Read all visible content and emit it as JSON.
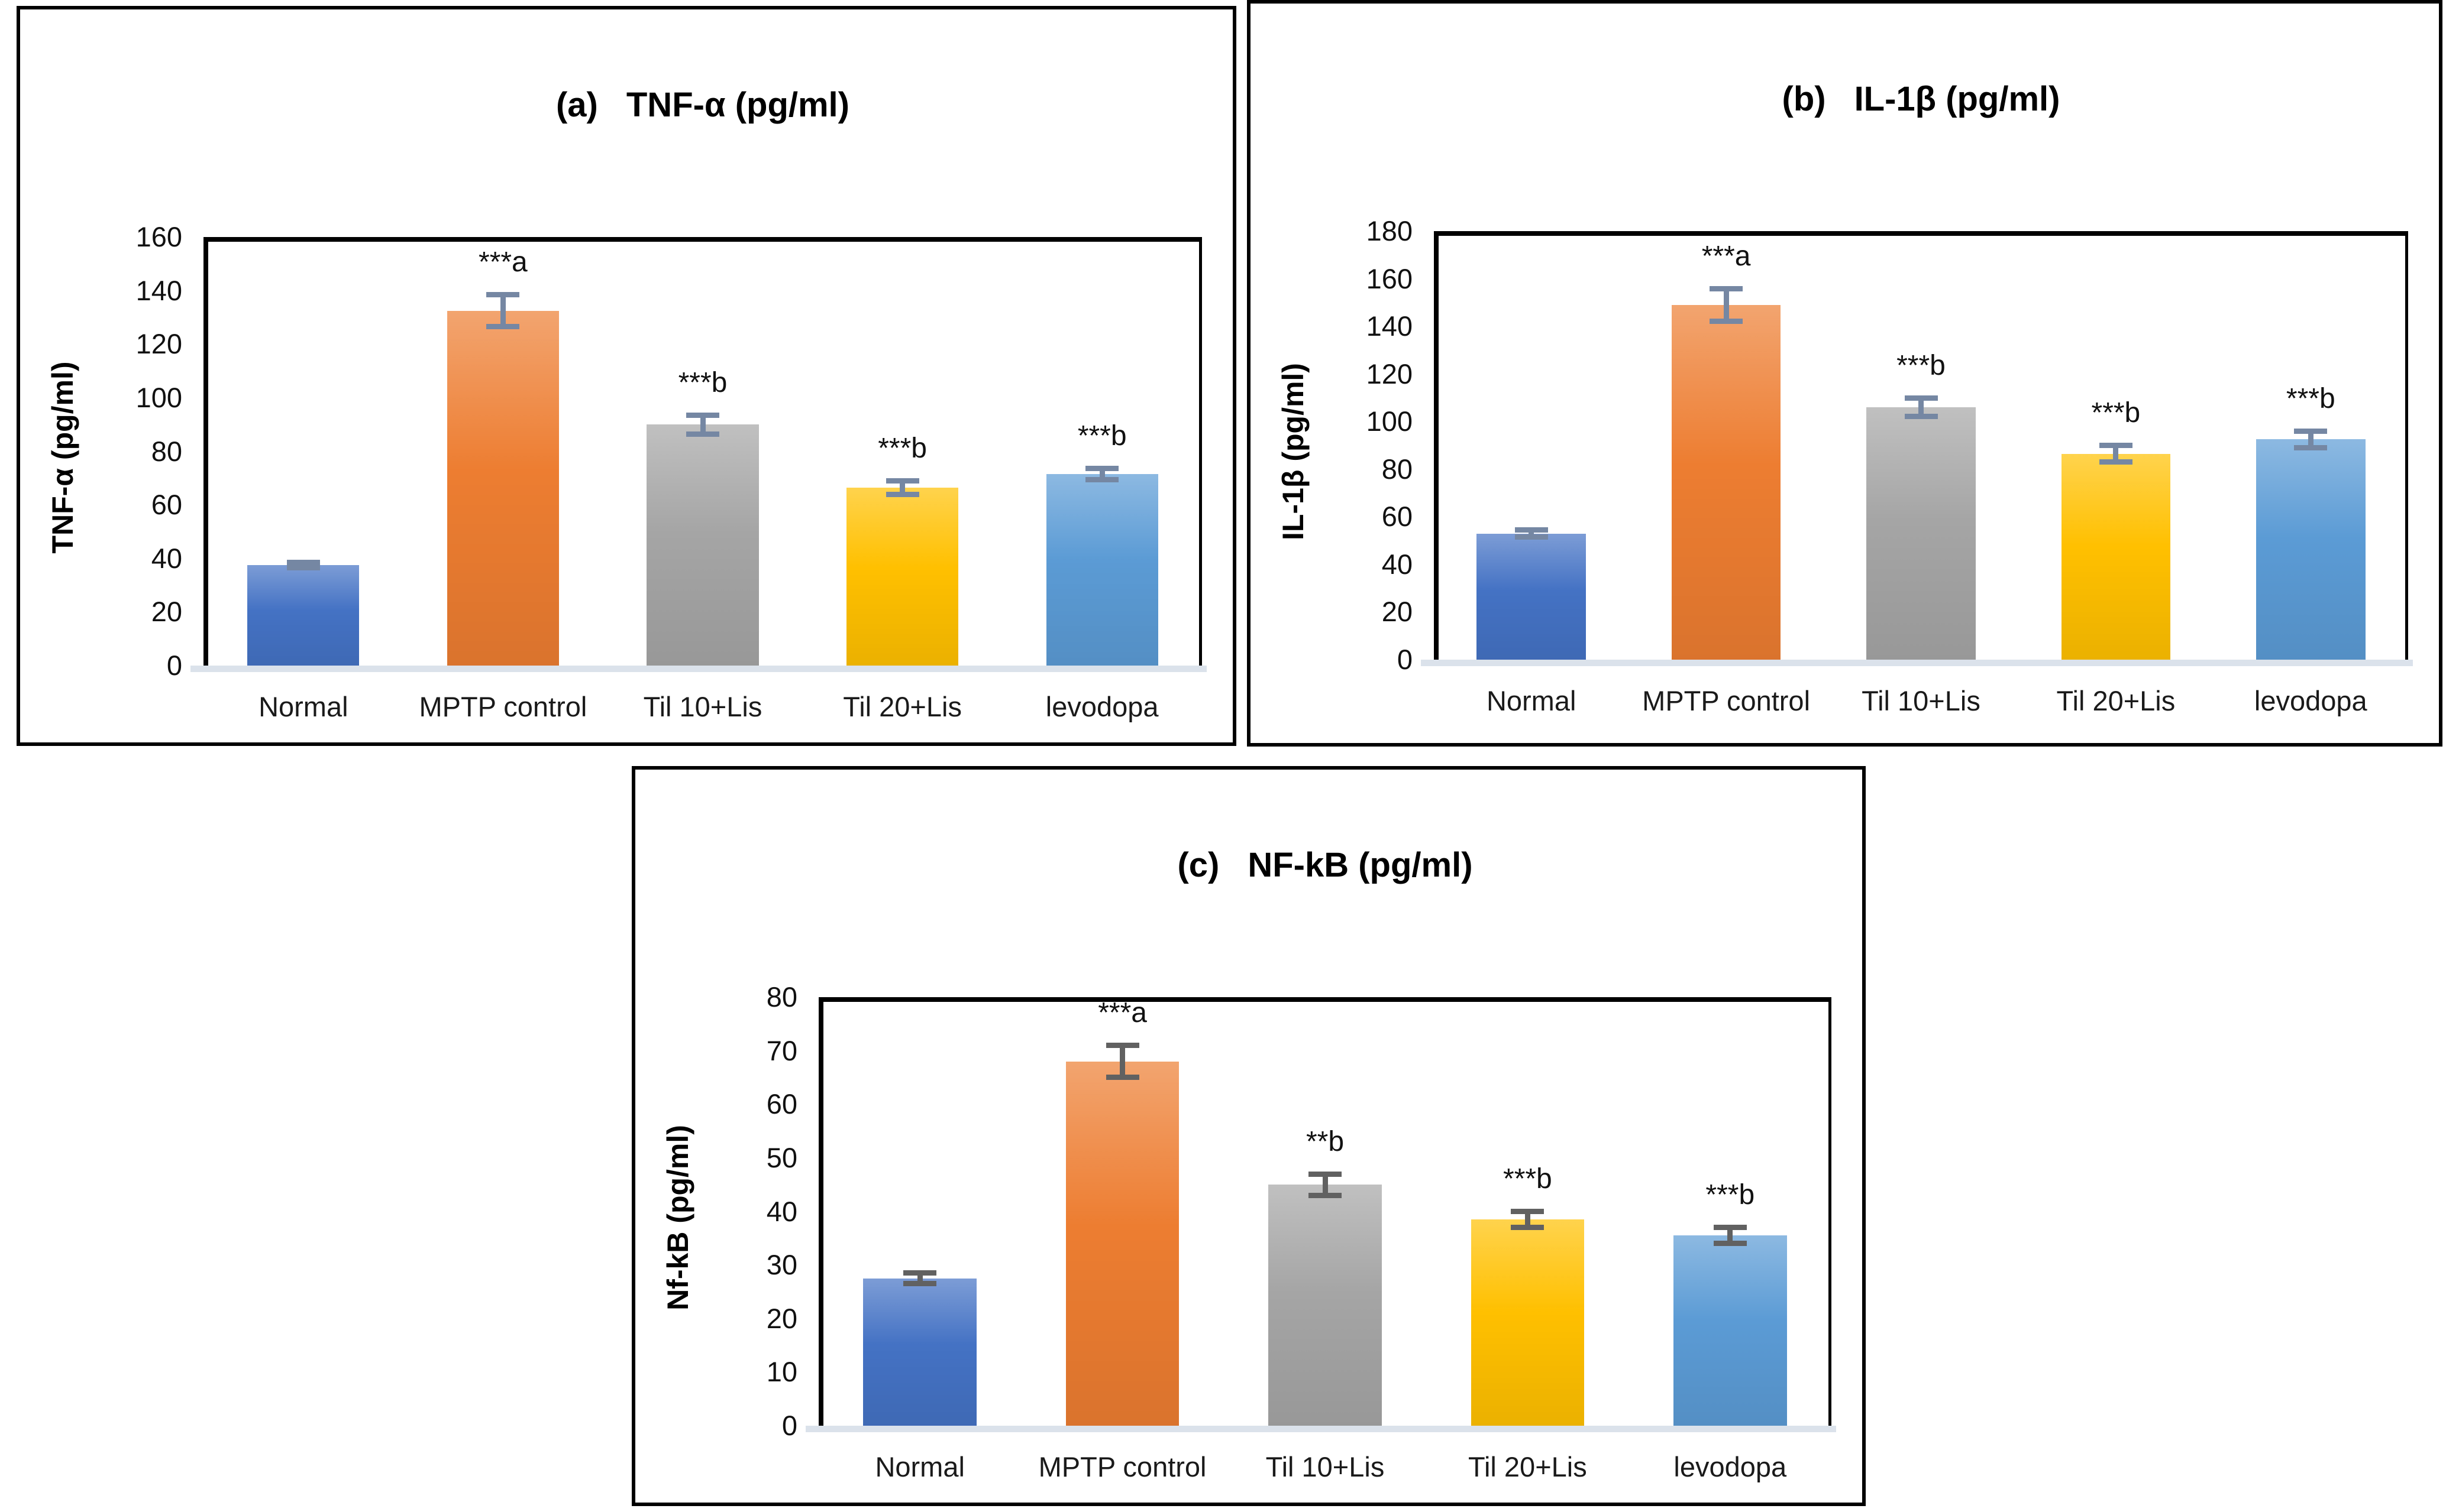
{
  "figure": {
    "description_labels": {
      "panel_a_title_prefix": "(a)",
      "panel_b_title_prefix": "(b)",
      "panel_c_title_prefix": "(c)"
    }
  },
  "chart_data": [
    {
      "type": "bar",
      "title_prefix": "(a)",
      "title": "TNF-α (pg/ml)",
      "ylabel": "TNF-α (pg/ml)",
      "xlabel": "",
      "ylim": [
        0,
        160
      ],
      "ystep": 20,
      "grid": false,
      "legend": "none",
      "categories": [
        "Normal",
        "MPTP control",
        "Til 10+Lis",
        "Til 20+Lis",
        "levodopa"
      ],
      "values": [
        37.5,
        132.5,
        90,
        66.5,
        71.5
      ],
      "error_bars": [
        2,
        7,
        4.5,
        3.5,
        3
      ],
      "annotations": [
        "",
        "***a",
        "***b",
        "***b",
        "***b"
      ],
      "bar_colors": [
        "#4472C4",
        "#ED7D31",
        "#A5A5A5",
        "#FFC000",
        "#5B9BD5"
      ],
      "error_bar_color": "#7587A3"
    },
    {
      "type": "bar",
      "title_prefix": "(b)",
      "title": "IL-1β (pg/ml)",
      "ylabel": "IL-1β (pg/ml)",
      "xlabel": "",
      "ylim": [
        0,
        180
      ],
      "ystep": 20,
      "grid": false,
      "legend": "none",
      "categories": [
        "Normal",
        "MPTP control",
        "Til 10+Lis",
        "Til 20+Lis",
        "levodopa"
      ],
      "values": [
        53,
        149,
        106,
        86.5,
        92.5
      ],
      "error_bars": [
        2.5,
        8,
        5,
        4.5,
        4.5
      ],
      "annotations": [
        "",
        "***a",
        "***b",
        "***b",
        "***b"
      ],
      "bar_colors": [
        "#4472C4",
        "#ED7D31",
        "#A5A5A5",
        "#FFC000",
        "#5B9BD5"
      ],
      "error_bar_color": "#7587A3"
    },
    {
      "type": "bar",
      "title_prefix": "(c)",
      "title": "NF-kB (pg/ml)",
      "ylabel": "Nf-kB (pg/ml)",
      "xlabel": "",
      "ylim": [
        0,
        80
      ],
      "ystep": 10,
      "grid": false,
      "legend": "none",
      "categories": [
        "Normal",
        "MPTP control",
        "Til 10+Lis",
        "Til 20+Lis",
        "levodopa"
      ],
      "values": [
        27.5,
        68,
        45,
        38.5,
        35.5
      ],
      "error_bars": [
        1.5,
        3.5,
        2.5,
        2,
        2
      ],
      "annotations": [
        "",
        "***a",
        "**b",
        "***b",
        "***b"
      ],
      "bar_colors": [
        "#4472C4",
        "#ED7D31",
        "#A5A5A5",
        "#FFC000",
        "#5B9BD5"
      ],
      "error_bar_color": "#616161"
    }
  ]
}
